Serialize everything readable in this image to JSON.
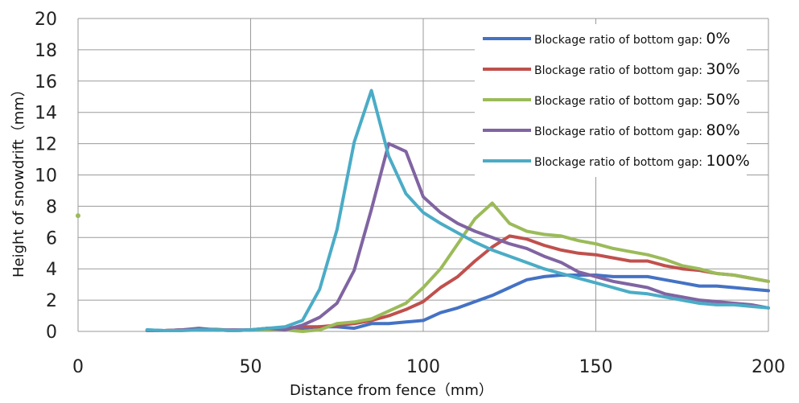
{
  "chart_data": {
    "type": "line",
    "title": "",
    "xlabel": "Distance from fence（mm）",
    "ylabel": "Height of snowdrift（mm）",
    "xlim": [
      0,
      200
    ],
    "ylim": [
      0,
      20
    ],
    "xticks": [
      0,
      50,
      100,
      150,
      200
    ],
    "yticks": [
      0,
      2,
      4,
      6,
      8,
      10,
      12,
      14,
      16,
      18,
      20
    ],
    "grid": true,
    "legend_position": "top-right",
    "legend_prefix": "Blockage ratio of bottom gap:",
    "series": [
      {
        "name": "0%",
        "label_value": "0%",
        "color": "#4472C4",
        "points": [
          [
            20,
            0.1
          ],
          [
            25,
            0.05
          ],
          [
            30,
            0.1
          ],
          [
            35,
            0.1
          ],
          [
            40,
            0.1
          ],
          [
            45,
            0.05
          ],
          [
            50,
            0.1
          ],
          [
            55,
            0.15
          ],
          [
            60,
            0.2
          ],
          [
            65,
            0.2
          ],
          [
            70,
            0.3
          ],
          [
            75,
            0.3
          ],
          [
            80,
            0.2
          ],
          [
            85,
            0.5
          ],
          [
            90,
            0.5
          ],
          [
            95,
            0.6
          ],
          [
            100,
            0.7
          ],
          [
            105,
            1.2
          ],
          [
            110,
            1.5
          ],
          [
            115,
            1.9
          ],
          [
            120,
            2.3
          ],
          [
            125,
            2.8
          ],
          [
            130,
            3.3
          ],
          [
            135,
            3.5
          ],
          [
            140,
            3.6
          ],
          [
            145,
            3.6
          ],
          [
            150,
            3.6
          ],
          [
            155,
            3.5
          ],
          [
            160,
            3.5
          ],
          [
            165,
            3.5
          ],
          [
            170,
            3.3
          ],
          [
            175,
            3.1
          ],
          [
            180,
            2.9
          ],
          [
            185,
            2.9
          ],
          [
            190,
            2.8
          ],
          [
            195,
            2.7
          ],
          [
            200,
            2.6
          ]
        ]
      },
      {
        "name": "30%",
        "label_value": "30%",
        "color": "#C0504D",
        "points": [
          [
            20,
            0.05
          ],
          [
            25,
            0.05
          ],
          [
            30,
            0.1
          ],
          [
            35,
            0.15
          ],
          [
            40,
            0.1
          ],
          [
            45,
            0.05
          ],
          [
            50,
            0.1
          ],
          [
            55,
            0.2
          ],
          [
            60,
            0.2
          ],
          [
            65,
            0.3
          ],
          [
            70,
            0.3
          ],
          [
            75,
            0.4
          ],
          [
            80,
            0.5
          ],
          [
            85,
            0.7
          ],
          [
            90,
            1.0
          ],
          [
            95,
            1.4
          ],
          [
            100,
            1.9
          ],
          [
            105,
            2.8
          ],
          [
            110,
            3.5
          ],
          [
            115,
            4.5
          ],
          [
            120,
            5.4
          ],
          [
            125,
            6.1
          ],
          [
            130,
            5.9
          ],
          [
            135,
            5.5
          ],
          [
            140,
            5.2
          ],
          [
            145,
            5.0
          ],
          [
            150,
            4.9
          ],
          [
            155,
            4.7
          ],
          [
            160,
            4.5
          ],
          [
            165,
            4.5
          ],
          [
            170,
            4.2
          ],
          [
            175,
            4.0
          ],
          [
            180,
            3.9
          ],
          [
            185,
            3.7
          ],
          [
            190,
            3.6
          ],
          [
            195,
            3.4
          ],
          [
            200,
            3.2
          ]
        ]
      },
      {
        "name": "50%",
        "label_value": "50%",
        "color": "#9BBB59",
        "points": [
          [
            20,
            0.05
          ],
          [
            25,
            0.05
          ],
          [
            30,
            0.1
          ],
          [
            35,
            0.1
          ],
          [
            40,
            0.15
          ],
          [
            45,
            0.05
          ],
          [
            50,
            0.1
          ],
          [
            55,
            0.1
          ],
          [
            60,
            0.1
          ],
          [
            65,
            0.0
          ],
          [
            70,
            0.1
          ],
          [
            75,
            0.5
          ],
          [
            80,
            0.6
          ],
          [
            85,
            0.8
          ],
          [
            90,
            1.3
          ],
          [
            95,
            1.8
          ],
          [
            100,
            2.8
          ],
          [
            105,
            4.0
          ],
          [
            110,
            5.6
          ],
          [
            115,
            7.2
          ],
          [
            120,
            8.2
          ],
          [
            125,
            6.9
          ],
          [
            130,
            6.4
          ],
          [
            135,
            6.2
          ],
          [
            140,
            6.1
          ],
          [
            145,
            5.8
          ],
          [
            150,
            5.6
          ],
          [
            155,
            5.3
          ],
          [
            160,
            5.1
          ],
          [
            165,
            4.9
          ],
          [
            170,
            4.6
          ],
          [
            175,
            4.2
          ],
          [
            180,
            4.0
          ],
          [
            185,
            3.7
          ],
          [
            190,
            3.6
          ],
          [
            195,
            3.4
          ],
          [
            200,
            3.2
          ]
        ]
      },
      {
        "name": "80%",
        "label_value": "80%",
        "color": "#8064A2",
        "points": [
          [
            20,
            0.05
          ],
          [
            25,
            0.05
          ],
          [
            30,
            0.1
          ],
          [
            35,
            0.2
          ],
          [
            40,
            0.1
          ],
          [
            45,
            0.1
          ],
          [
            50,
            0.1
          ],
          [
            55,
            0.2
          ],
          [
            60,
            0.1
          ],
          [
            65,
            0.4
          ],
          [
            70,
            0.9
          ],
          [
            75,
            1.8
          ],
          [
            80,
            3.9
          ],
          [
            85,
            7.8
          ],
          [
            90,
            12.0
          ],
          [
            95,
            11.5
          ],
          [
            100,
            8.6
          ],
          [
            105,
            7.6
          ],
          [
            110,
            6.9
          ],
          [
            115,
            6.4
          ],
          [
            120,
            6.0
          ],
          [
            125,
            5.6
          ],
          [
            130,
            5.3
          ],
          [
            135,
            4.8
          ],
          [
            140,
            4.4
          ],
          [
            145,
            3.8
          ],
          [
            150,
            3.5
          ],
          [
            155,
            3.2
          ],
          [
            160,
            3.0
          ],
          [
            165,
            2.8
          ],
          [
            170,
            2.4
          ],
          [
            175,
            2.2
          ],
          [
            180,
            2.0
          ],
          [
            185,
            1.9
          ],
          [
            190,
            1.8
          ],
          [
            195,
            1.7
          ],
          [
            200,
            1.5
          ]
        ]
      },
      {
        "name": "100%",
        "label_value": "100%",
        "color": "#4BACC6",
        "points": [
          [
            20,
            0.1
          ],
          [
            25,
            0.05
          ],
          [
            30,
            0.05
          ],
          [
            35,
            0.1
          ],
          [
            40,
            0.1
          ],
          [
            45,
            0.05
          ],
          [
            50,
            0.1
          ],
          [
            55,
            0.2
          ],
          [
            60,
            0.3
          ],
          [
            65,
            0.7
          ],
          [
            70,
            2.7
          ],
          [
            75,
            6.5
          ],
          [
            80,
            12.1
          ],
          [
            85,
            15.4
          ],
          [
            90,
            11.2
          ],
          [
            95,
            8.8
          ],
          [
            100,
            7.6
          ],
          [
            105,
            6.9
          ],
          [
            110,
            6.3
          ],
          [
            115,
            5.7
          ],
          [
            120,
            5.2
          ],
          [
            125,
            4.8
          ],
          [
            130,
            4.4
          ],
          [
            135,
            4.0
          ],
          [
            140,
            3.7
          ],
          [
            145,
            3.4
          ],
          [
            150,
            3.1
          ],
          [
            155,
            2.8
          ],
          [
            160,
            2.5
          ],
          [
            165,
            2.4
          ],
          [
            170,
            2.2
          ],
          [
            175,
            2.0
          ],
          [
            180,
            1.8
          ],
          [
            185,
            1.7
          ],
          [
            190,
            1.7
          ],
          [
            195,
            1.6
          ],
          [
            200,
            1.5
          ]
        ]
      }
    ],
    "stray_marker": {
      "x": 0,
      "y": 7.4,
      "color": "#9BBB59"
    }
  }
}
